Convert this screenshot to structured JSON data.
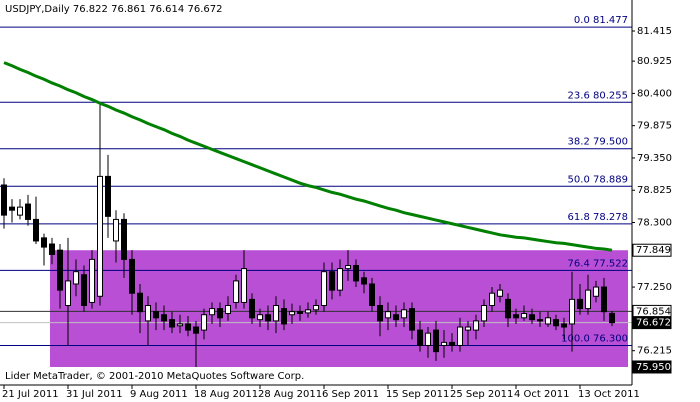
{
  "chart_data": {
    "type": "candlestick",
    "title": "USDJPY,Daily",
    "categories": [
      "21 Jul 2011",
      null,
      null,
      null,
      null,
      null,
      null,
      null,
      "31 Jul 2011",
      null,
      null,
      null,
      null,
      null,
      null,
      null,
      "9 Aug 2011",
      null,
      null,
      null,
      null,
      null,
      null,
      null,
      "18 Aug 2011",
      null,
      null,
      null,
      null,
      null,
      null,
      null,
      "28 Aug 2011",
      null,
      null,
      null,
      null,
      null,
      null,
      null,
      "6 Sep 2011",
      null,
      null,
      null,
      null,
      null,
      null,
      null,
      "15 Sep 2011",
      null,
      null,
      null,
      null,
      null,
      null,
      null,
      "25 Sep 2011",
      null,
      null,
      null,
      null,
      null,
      null,
      null,
      "4 Oct 2011",
      null,
      null,
      null,
      null,
      null,
      null,
      null,
      "13 Oct 2011",
      null,
      null,
      null,
      null
    ],
    "open": [
      78.91,
      78.55,
      78.42,
      78.6,
      78.35,
      78.05,
      77.95,
      77.85,
      76.95,
      77.3,
      77.45,
      77.0,
      77.1,
      79.05,
      78.0,
      78.35,
      77.7,
      77.15,
      76.7,
      76.85,
      76.8,
      76.72,
      76.62,
      76.65,
      76.6,
      76.55,
      76.8,
      76.9,
      76.82,
      77.0,
      77.0,
      77.05,
      76.72,
      76.8,
      76.7,
      76.9,
      76.8,
      76.85,
      76.83,
      76.88,
      76.95,
      77.5,
      77.2,
      77.55,
      77.6,
      77.4,
      77.3,
      76.95,
      76.75,
      76.8,
      76.75,
      76.9,
      76.55,
      76.3,
      76.55,
      76.3,
      76.35,
      76.3,
      76.55,
      76.55,
      76.7,
      76.95,
      77.1,
      77.05,
      76.8,
      76.75,
      76.8,
      76.72,
      76.65,
      76.72,
      76.65,
      76.65,
      77.05,
      76.9,
      77.1,
      77.25,
      76.822
    ],
    "high": [
      79.02,
      78.68,
      78.68,
      78.75,
      78.72,
      78.12,
      78.05,
      77.95,
      78.05,
      77.7,
      77.6,
      77.85,
      80.25,
      79.4,
      78.5,
      78.45,
      77.85,
      77.3,
      77.1,
      77.0,
      76.95,
      76.85,
      76.8,
      76.78,
      76.7,
      76.9,
      77.0,
      77.0,
      77.1,
      77.45,
      77.85,
      77.15,
      76.9,
      76.95,
      77.1,
      77.05,
      76.98,
      76.95,
      77.0,
      77.05,
      77.65,
      77.65,
      77.7,
      77.85,
      77.7,
      77.5,
      77.4,
      77.1,
      77.0,
      76.95,
      77.0,
      77.0,
      76.7,
      76.6,
      76.7,
      76.55,
      76.5,
      76.75,
      76.7,
      76.8,
      77.05,
      77.25,
      77.3,
      77.15,
      76.9,
      76.95,
      76.9,
      76.85,
      76.85,
      76.8,
      76.75,
      77.5,
      77.3,
      77.45,
      77.35,
      77.4,
      76.861
    ],
    "low": [
      78.2,
      78.3,
      78.35,
      78.25,
      77.95,
      77.6,
      77.62,
      76.9,
      76.3,
      77.1,
      76.85,
      76.9,
      76.95,
      78.05,
      77.65,
      77.4,
      76.8,
      76.5,
      76.3,
      76.55,
      76.55,
      76.5,
      76.5,
      76.45,
      75.95,
      76.4,
      76.65,
      76.6,
      76.7,
      76.9,
      76.9,
      76.65,
      76.6,
      76.55,
      76.5,
      76.55,
      76.65,
      76.7,
      76.75,
      76.8,
      76.85,
      77.05,
      77.1,
      77.35,
      77.25,
      77.15,
      76.85,
      76.45,
      76.55,
      76.6,
      76.6,
      76.4,
      76.2,
      76.1,
      76.05,
      76.1,
      76.2,
      76.2,
      76.3,
      76.4,
      76.6,
      76.85,
      77.0,
      76.6,
      76.65,
      76.7,
      76.65,
      76.6,
      76.6,
      76.55,
      76.4,
      76.2,
      76.8,
      76.8,
      77.0,
      76.7,
      76.614
    ],
    "close": [
      78.42,
      78.5,
      78.55,
      78.35,
      78.0,
      77.9,
      77.78,
      77.2,
      77.35,
      77.5,
      76.95,
      77.7,
      79.05,
      78.4,
      78.35,
      77.7,
      77.15,
      76.85,
      76.95,
      76.75,
      76.7,
      76.6,
      76.65,
      76.55,
      76.5,
      76.8,
      76.9,
      76.75,
      76.95,
      77.35,
      77.55,
      76.75,
      76.8,
      76.7,
      76.95,
      76.65,
      76.85,
      76.82,
      76.88,
      76.95,
      77.5,
      77.2,
      77.55,
      77.6,
      77.35,
      77.3,
      76.95,
      76.7,
      76.85,
      76.72,
      76.88,
      76.55,
      76.3,
      76.5,
      76.2,
      76.35,
      76.3,
      76.6,
      76.6,
      76.7,
      76.95,
      77.15,
      77.2,
      76.75,
      76.75,
      76.82,
      76.72,
      76.7,
      76.75,
      76.62,
      76.6,
      77.05,
      76.9,
      77.2,
      77.25,
      76.85,
      76.672
    ],
    "ma": {
      "color": "#008000",
      "values": [
        80.9,
        80.85,
        80.79,
        80.74,
        80.68,
        80.63,
        80.57,
        80.52,
        80.46,
        80.41,
        80.35,
        80.3,
        80.24,
        80.19,
        80.13,
        80.08,
        80.02,
        79.97,
        79.91,
        79.86,
        79.81,
        79.75,
        79.7,
        79.64,
        79.59,
        79.54,
        79.49,
        79.44,
        79.39,
        79.34,
        79.29,
        79.24,
        79.19,
        79.14,
        79.09,
        79.04,
        78.99,
        78.94,
        78.9,
        78.87,
        78.83,
        78.79,
        78.76,
        78.72,
        78.68,
        78.65,
        78.61,
        78.57,
        78.53,
        78.5,
        78.46,
        78.43,
        78.4,
        78.37,
        78.34,
        78.31,
        78.28,
        78.25,
        78.22,
        78.19,
        78.16,
        78.13,
        78.1,
        78.08,
        78.06,
        78.05,
        78.03,
        78.01,
        77.99,
        77.97,
        77.96,
        77.94,
        77.92,
        77.9,
        77.88,
        77.87,
        77.849
      ]
    },
    "fibo": {
      "color": "#000080",
      "ratios": [
        "0.0",
        "23.6",
        "38.2",
        "50.0",
        "61.8",
        "76.4",
        "100.0"
      ],
      "prices": [
        81.477,
        80.255,
        {
          "value": 79.5,
          "label": "79.500"
        },
        78.889,
        78.278,
        77.522,
        {
          "value": 76.3,
          "label": "76.300"
        }
      ]
    },
    "rectangle": {
      "color": "#b84fd4",
      "range": [
        {
          "value": 75.95,
          "label": "75.950"
        },
        77.849
      ]
    },
    "hline": 76.854,
    "ylim": [
      75.657,
      81.919
    ],
    "yticks": [
      81.415,
      80.925,
      {
        "value": 80.4,
        "label": "80.400"
      },
      79.875,
      {
        "value": 79.35,
        "label": "79.350"
      },
      78.825,
      {
        "value": 78.3,
        "label": "78.300"
      },
      {
        "value": 77.25,
        "label": "77.250"
      },
      76.215
    ],
    "footer": "Lider MetaTrader, © 2001-2010 MetaQuotes Software Corp."
  }
}
